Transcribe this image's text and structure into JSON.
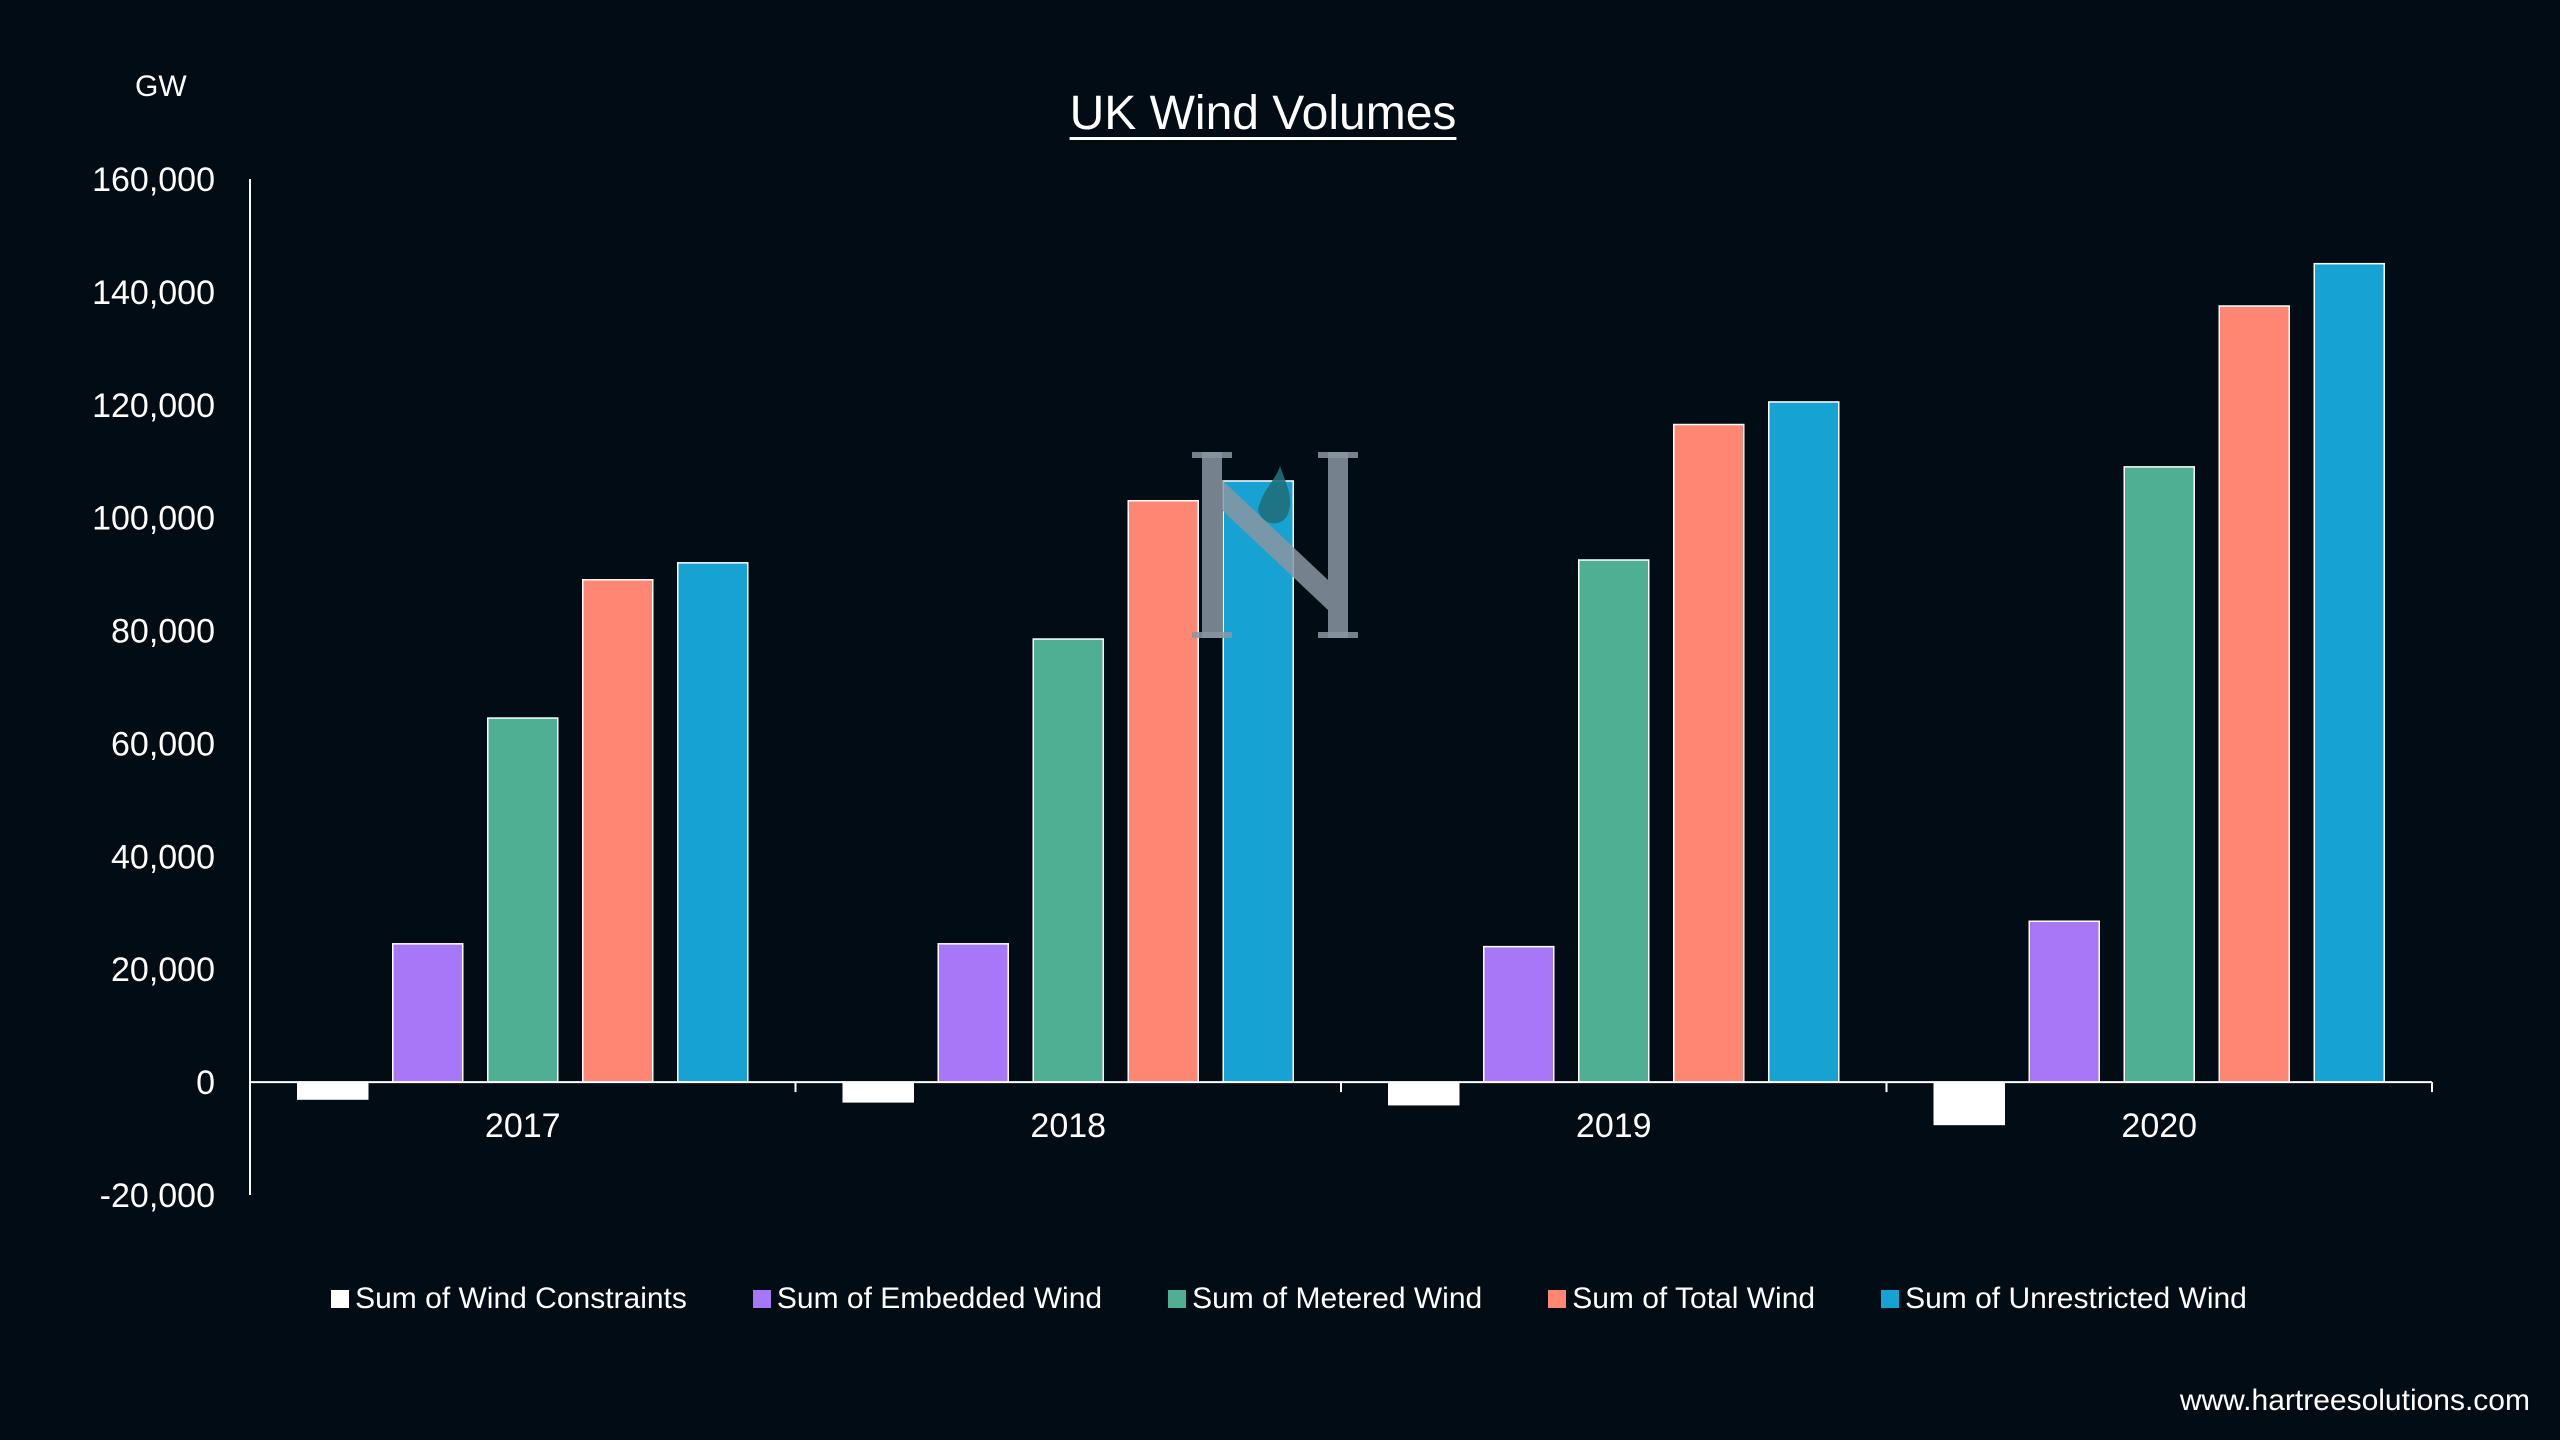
{
  "unit_label": "GW",
  "footer": {
    "url": "www.hartreesolutions.com"
  },
  "chart_data": {
    "type": "bar",
    "title": "UK Wind Volumes",
    "xlabel": "",
    "ylabel": "GW",
    "categories": [
      "2017",
      "2018",
      "2019",
      "2020"
    ],
    "ylim": [
      -20000,
      160000
    ],
    "yticks": [
      -20000,
      0,
      20000,
      40000,
      60000,
      80000,
      100000,
      120000,
      140000,
      160000
    ],
    "ytick_labels": [
      "-20,000",
      "0",
      "20,000",
      "40,000",
      "60,000",
      "80,000",
      "100,000",
      "120,000",
      "140,000",
      "160,000"
    ],
    "grid": false,
    "legend_position": "bottom",
    "series": [
      {
        "name": "Sum of Wind Constraints",
        "color": "#ffffff",
        "values": [
          -3000,
          -3500,
          -4000,
          -7500
        ]
      },
      {
        "name": "Sum of Embedded Wind",
        "color": "#a678f8",
        "values": [
          24500,
          24500,
          24000,
          28500
        ]
      },
      {
        "name": "Sum of Metered Wind",
        "color": "#4faf93",
        "values": [
          64500,
          78500,
          92500,
          109000
        ]
      },
      {
        "name": "Sum of Total Wind",
        "color": "#fe8673",
        "values": [
          89000,
          103000,
          116500,
          137500
        ]
      },
      {
        "name": "Sum of Unrestricted Wind",
        "color": "#16a2d3",
        "values": [
          92000,
          106500,
          120500,
          145000
        ]
      }
    ]
  },
  "watermark": {
    "icon": "hartree-logo-icon",
    "color": "#8a97a2"
  }
}
